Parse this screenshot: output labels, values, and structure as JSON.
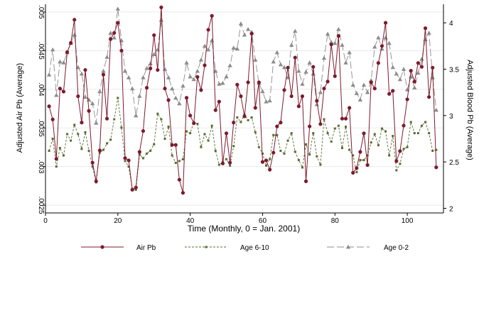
{
  "chart_data": {
    "type": "line",
    "xlabel": "Time (Monthly, 0 = Jan. 2001)",
    "ylabel_left": "Adjusted Air Pb (Average)",
    "ylabel_right": "Adjusted Blood Pb (Average)",
    "xlim": [
      0,
      110
    ],
    "ylim_left": [
      0.0024,
      0.0051
    ],
    "ylim_right": [
      1.95,
      4.2
    ],
    "x_ticks": [
      0,
      20,
      40,
      60,
      80,
      100
    ],
    "y_ticks_left": [
      0.0025,
      0.003,
      0.0035,
      0.004,
      0.0045,
      0.005
    ],
    "y_tick_labels_left": [
      ".0025",
      ".003",
      ".0035",
      ".004",
      ".0045",
      ".005"
    ],
    "y_ticks_right": [
      2,
      2.5,
      3,
      3.5,
      4
    ],
    "y_tick_labels_right": [
      "2",
      "2.5",
      "3",
      "3.5",
      "4"
    ],
    "grid": true,
    "legend_position": "bottom",
    "series": [
      {
        "name": "Air Pb",
        "axis": "left",
        "color": "#7d1a2d",
        "style": "solid",
        "marker": "circle",
        "x": [
          1,
          2,
          3,
          4,
          5,
          6,
          7,
          8,
          9,
          10,
          11,
          12,
          13,
          14,
          15,
          16,
          17,
          18,
          19,
          20,
          21,
          22,
          23,
          24,
          25,
          26,
          27,
          28,
          29,
          30,
          31,
          32,
          33,
          34,
          35,
          36,
          37,
          38,
          39,
          40,
          41,
          42,
          43,
          44,
          45,
          46,
          47,
          48,
          49,
          50,
          51,
          52,
          53,
          54,
          55,
          56,
          57,
          58,
          59,
          60,
          61,
          62,
          63,
          64,
          65,
          66,
          67,
          68,
          69,
          70,
          71,
          72,
          73,
          74,
          75,
          76,
          77,
          78,
          79,
          80,
          81,
          82,
          83,
          84,
          85,
          86,
          87,
          88,
          89,
          90,
          91,
          92,
          93,
          94,
          95,
          96,
          97,
          98,
          99,
          100,
          101,
          102,
          103,
          104,
          105,
          106,
          107,
          108
        ],
        "values": [
          0.00378,
          0.00361,
          0.0031,
          0.00401,
          0.00397,
          0.00448,
          0.0046,
          0.0049,
          0.00391,
          0.00357,
          0.00425,
          0.00372,
          0.00305,
          0.00281,
          0.00321,
          0.00419,
          0.00362,
          0.00465,
          0.00473,
          0.00486,
          0.0045,
          0.00311,
          0.00308,
          0.0027,
          0.00273,
          0.00319,
          0.00346,
          0.00402,
          0.00427,
          0.0047,
          0.00425,
          0.00506,
          0.00401,
          0.00386,
          0.00328,
          0.00328,
          0.00283,
          0.00266,
          0.00389,
          0.00366,
          0.00356,
          0.00416,
          0.00399,
          0.00431,
          0.00477,
          0.00495,
          0.00373,
          0.00384,
          0.00304,
          0.00343,
          0.00305,
          0.00357,
          0.00406,
          0.00391,
          0.00365,
          0.00409,
          0.00472,
          0.00376,
          0.00409,
          0.00306,
          0.00308,
          0.00296,
          0.00318,
          0.00352,
          0.00357,
          0.00399,
          0.00428,
          0.00391,
          0.00441,
          0.00378,
          0.00391,
          0.00281,
          0.00352,
          0.00429,
          0.00385,
          0.00355,
          0.00401,
          0.0041,
          0.00458,
          0.00417,
          0.00469,
          0.00362,
          0.00362,
          0.00376,
          0.00292,
          0.00298,
          0.00319,
          0.00343,
          0.00302,
          0.00409,
          0.00401,
          0.00434,
          0.00456,
          0.00486,
          0.00394,
          0.00398,
          0.00307,
          0.0032,
          0.00353,
          0.00387,
          0.00424,
          0.0041,
          0.00434,
          0.00429,
          0.00479,
          0.0039,
          0.00428,
          0.00299
        ]
      },
      {
        "name": "Age 6-10",
        "axis": "right",
        "color": "#556b2f",
        "style": "dashed",
        "marker": "square",
        "x": [
          1,
          2,
          3,
          4,
          5,
          6,
          7,
          8,
          9,
          10,
          11,
          12,
          13,
          14,
          15,
          16,
          17,
          18,
          19,
          20,
          21,
          22,
          23,
          24,
          25,
          26,
          27,
          28,
          29,
          30,
          31,
          32,
          33,
          34,
          35,
          36,
          37,
          38,
          39,
          40,
          41,
          42,
          43,
          44,
          45,
          46,
          47,
          48,
          49,
          50,
          51,
          52,
          53,
          54,
          55,
          56,
          57,
          58,
          59,
          60,
          61,
          62,
          63,
          64,
          65,
          66,
          67,
          68,
          69,
          70,
          71,
          72,
          73,
          74,
          75,
          76,
          77,
          78,
          79,
          80,
          81,
          82,
          83,
          84,
          85,
          86,
          87,
          88,
          89,
          90,
          91,
          92,
          93,
          94,
          95,
          96,
          97,
          98,
          99,
          100,
          101,
          102,
          103,
          104,
          105,
          106,
          107,
          108
        ],
        "values": [
          2.62,
          2.75,
          2.45,
          2.65,
          2.57,
          2.8,
          2.73,
          2.9,
          2.8,
          2.64,
          2.82,
          2.62,
          2.45,
          2.28,
          2.6,
          2.63,
          2.7,
          2.74,
          2.96,
          3.19,
          2.87,
          2.51,
          2.45,
          2.21,
          2.2,
          2.58,
          2.54,
          2.59,
          2.62,
          2.69,
          3.02,
          2.96,
          2.75,
          2.88,
          2.57,
          2.49,
          2.51,
          2.53,
          2.83,
          2.81,
          2.93,
          2.91,
          2.66,
          2.8,
          2.73,
          2.89,
          2.62,
          2.47,
          2.5,
          2.53,
          2.46,
          2.67,
          2.98,
          2.93,
          3.01,
          2.95,
          2.98,
          2.82,
          2.66,
          2.59,
          2.46,
          2.53,
          2.79,
          2.79,
          2.62,
          2.59,
          2.73,
          2.81,
          2.61,
          2.52,
          2.44,
          2.69,
          2.58,
          2.81,
          2.56,
          2.47,
          2.96,
          2.81,
          2.72,
          2.86,
          2.89,
          2.65,
          2.88,
          2.63,
          2.57,
          2.39,
          2.52,
          2.52,
          2.57,
          2.71,
          2.8,
          2.68,
          2.86,
          2.83,
          2.57,
          2.78,
          2.41,
          2.48,
          2.64,
          2.66,
          2.93,
          2.81,
          2.81,
          2.89,
          2.93,
          2.81,
          2.62,
          2.63
        ]
      },
      {
        "name": "Age 0-2",
        "axis": "right",
        "color": "#8c8c8c",
        "style": "longdash",
        "marker": "triangle",
        "x": [
          1,
          2,
          3,
          4,
          5,
          6,
          7,
          8,
          9,
          10,
          11,
          12,
          13,
          14,
          15,
          16,
          17,
          18,
          19,
          20,
          21,
          22,
          23,
          24,
          25,
          26,
          27,
          28,
          29,
          30,
          31,
          32,
          33,
          34,
          35,
          36,
          37,
          38,
          39,
          40,
          41,
          42,
          43,
          44,
          45,
          46,
          47,
          48,
          49,
          50,
          51,
          52,
          53,
          54,
          55,
          56,
          57,
          58,
          59,
          60,
          61,
          62,
          63,
          64,
          65,
          66,
          67,
          68,
          69,
          70,
          71,
          72,
          73,
          74,
          75,
          76,
          77,
          78,
          79,
          80,
          81,
          82,
          83,
          84,
          85,
          86,
          87,
          88,
          89,
          90,
          91,
          92,
          93,
          94,
          95,
          96,
          97,
          98,
          99,
          100,
          101,
          102,
          103,
          104,
          105,
          106,
          107,
          108
        ],
        "values": [
          3.44,
          3.71,
          3.22,
          3.58,
          3.57,
          3.68,
          3.78,
          3.87,
          3.52,
          3.45,
          3.2,
          3.17,
          3.13,
          2.92,
          3.26,
          3.48,
          3.63,
          3.89,
          3.84,
          4.15,
          3.81,
          3.48,
          3.41,
          3.29,
          3.0,
          3.21,
          3.41,
          3.51,
          3.56,
          3.66,
          3.71,
          4.03,
          3.5,
          3.41,
          3.29,
          3.19,
          3.13,
          3.32,
          3.57,
          3.42,
          3.39,
          3.48,
          3.6,
          3.75,
          3.71,
          3.81,
          3.48,
          3.34,
          3.35,
          3.42,
          3.54,
          3.73,
          3.72,
          3.99,
          3.87,
          3.93,
          3.9,
          3.6,
          3.35,
          3.26,
          3.15,
          3.16,
          3.58,
          3.68,
          3.55,
          3.52,
          3.41,
          3.76,
          3.91,
          3.48,
          3.34,
          3.47,
          3.57,
          3.45,
          3.12,
          3.25,
          3.62,
          3.88,
          3.79,
          3.78,
          3.93,
          3.76,
          3.57,
          3.68,
          3.33,
          3.24,
          3.17,
          3.33,
          3.25,
          3.38,
          3.74,
          3.84,
          3.72,
          3.84,
          3.78,
          3.52,
          3.45,
          3.39,
          3.5,
          3.28,
          3.42,
          3.3,
          3.46,
          3.61,
          3.82,
          3.89,
          3.41,
          3.06
        ]
      }
    ]
  }
}
